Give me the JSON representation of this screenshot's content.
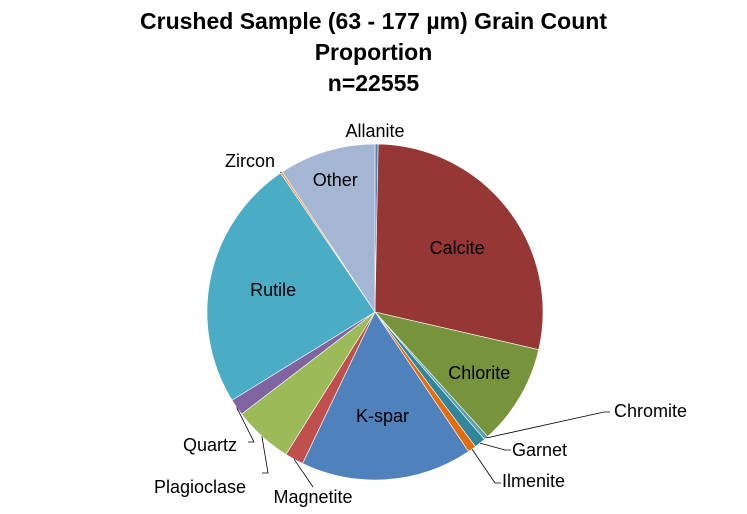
{
  "chart_data": {
    "type": "pie",
    "title": "Crushed Sample (63 - 177 µm) Grain Count",
    "title_line2": "Proportion",
    "subtitle": "n=22555",
    "legend": "none",
    "slices": [
      {
        "label": "Allanite",
        "value": 0.3,
        "color": "#4f81bd"
      },
      {
        "label": "Calcite",
        "value": 28.3,
        "color": "#953735"
      },
      {
        "label": "Chlorite",
        "value": 9.7,
        "color": "#77933c"
      },
      {
        "label": "Chromite",
        "value": 0.4,
        "color": "#5b9ead"
      },
      {
        "label": "Garnet",
        "value": 1.1,
        "color": "#31859c"
      },
      {
        "label": "Ilmenite",
        "value": 0.8,
        "color": "#e46c0a"
      },
      {
        "label": "K-spar",
        "value": 16.5,
        "color": "#4f81bd"
      },
      {
        "label": "Magnetite",
        "value": 1.8,
        "color": "#c0504d"
      },
      {
        "label": "Plagioclase",
        "value": 5.7,
        "color": "#9bbb59"
      },
      {
        "label": "Quartz",
        "value": 1.6,
        "color": "#8064a2"
      },
      {
        "label": "Rutile",
        "value": 24.3,
        "color": "#4bacc6"
      },
      {
        "label": "Zircon",
        "value": 0.2,
        "color": "#f79646"
      },
      {
        "label": "Other",
        "value": 9.3,
        "color": "#a5b6d3"
      }
    ]
  }
}
